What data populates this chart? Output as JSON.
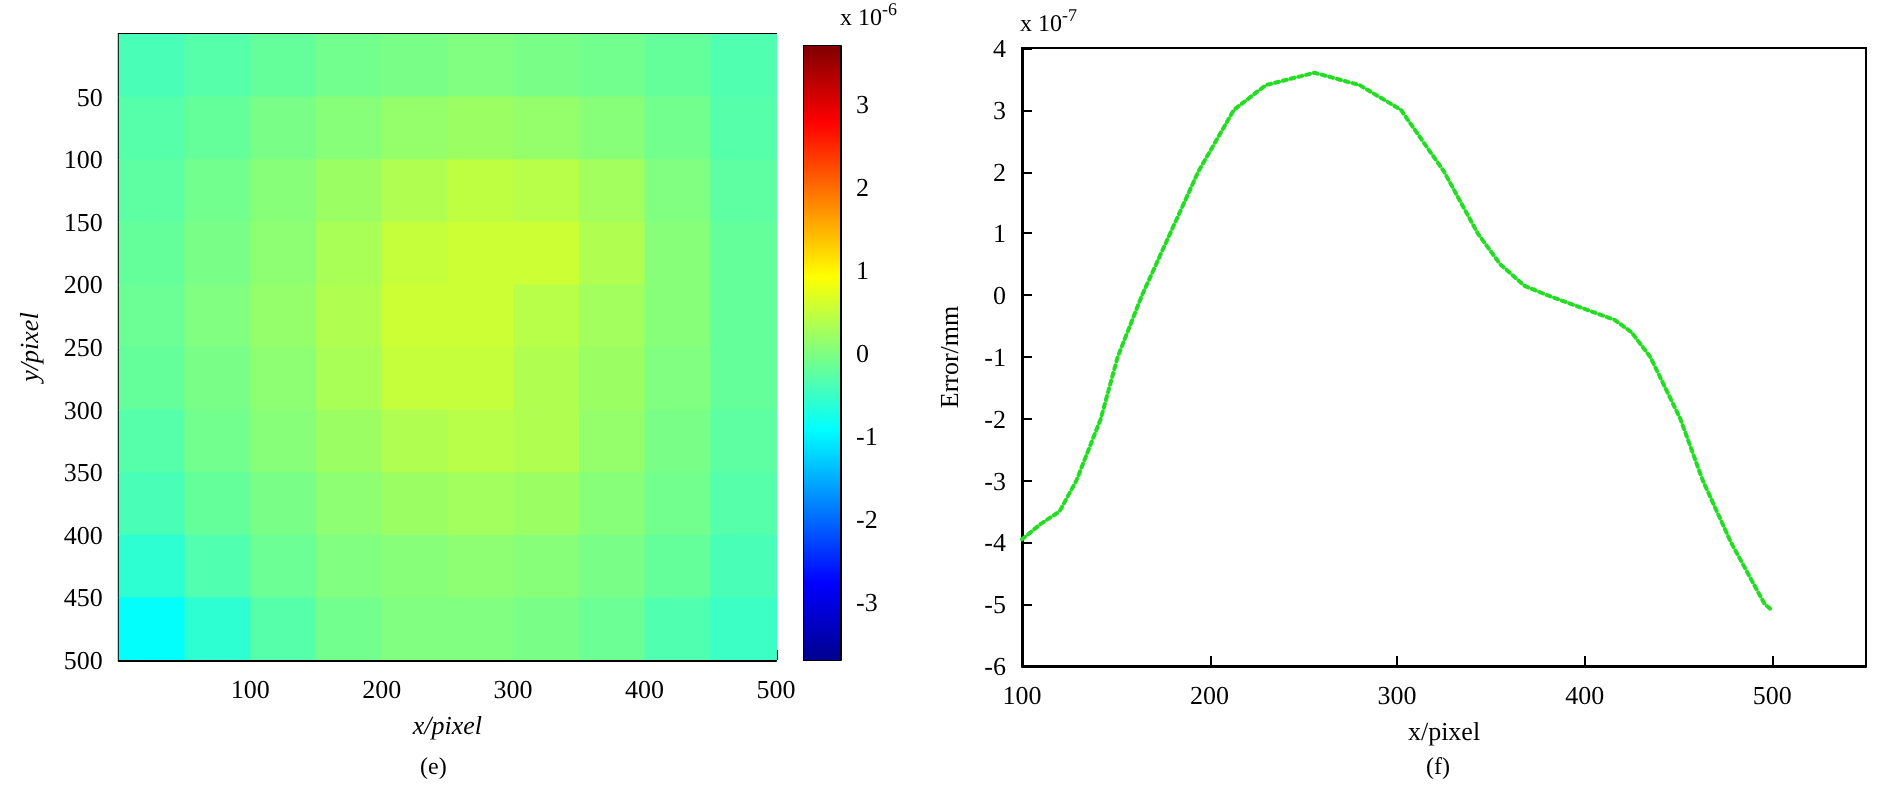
{
  "chart_data": [
    {
      "type": "heatmap",
      "title": "(e)",
      "xlabel": "x/pixel",
      "ylabel": "y/pixel",
      "clabel": "x 10$^{-6}$",
      "x": [
        25,
        75,
        125,
        175,
        225,
        275,
        325,
        375,
        425,
        475
      ],
      "y": [
        25,
        75,
        125,
        175,
        225,
        275,
        325,
        375,
        425,
        475
      ],
      "xlim": [
        0,
        500
      ],
      "xticks": [
        100,
        200,
        300,
        400,
        500
      ],
      "ylim": [
        500,
        0
      ],
      "yticks": [
        50,
        100,
        150,
        200,
        250,
        300,
        350,
        400,
        450,
        500
      ],
      "clim": [
        -3.7,
        3.7
      ],
      "cticks": [
        -3,
        -2,
        -1,
        0,
        1,
        2,
        3
      ],
      "cells": [
        [
          -0.4,
          -0.3,
          -0.2,
          -0.1,
          -0.05,
          0,
          -0.05,
          -0.1,
          -0.2,
          -0.35
        ],
        [
          -0.3,
          -0.2,
          -0.05,
          0.05,
          0.15,
          0.2,
          0.15,
          0.05,
          -0.1,
          -0.3
        ],
        [
          -0.25,
          -0.1,
          0.05,
          0.2,
          0.35,
          0.45,
          0.4,
          0.25,
          0,
          -0.25
        ],
        [
          -0.2,
          -0.05,
          0.1,
          0.3,
          0.5,
          0.55,
          0.55,
          0.35,
          0.05,
          -0.2
        ],
        [
          -0.15,
          0,
          0.15,
          0.35,
          0.55,
          0.55,
          0.4,
          0.25,
          0.05,
          -0.2
        ],
        [
          -0.2,
          -0.05,
          0.1,
          0.3,
          0.5,
          0.5,
          0.35,
          0.2,
          0,
          -0.2
        ],
        [
          -0.3,
          -0.1,
          0.05,
          0.2,
          0.35,
          0.4,
          0.35,
          0.15,
          -0.05,
          -0.25
        ],
        [
          -0.4,
          -0.2,
          -0.05,
          0.1,
          0.2,
          0.25,
          0.2,
          0.05,
          -0.1,
          -0.3
        ],
        [
          -0.6,
          -0.35,
          -0.15,
          0,
          0.05,
          0.1,
          0.05,
          -0.05,
          -0.2,
          -0.4
        ],
        [
          -0.9,
          -0.6,
          -0.3,
          -0.1,
          0,
          0,
          -0.05,
          -0.15,
          -0.35,
          -0.5
        ]
      ]
    },
    {
      "type": "line",
      "title": "(f)",
      "xlabel": "x/pixel",
      "ylabel": "Error/mm",
      "annotations": [
        "x 10$^{-7}$"
      ],
      "xlim": [
        100,
        550
      ],
      "xticks": [
        100,
        200,
        300,
        400,
        500
      ],
      "ylim": [
        -6,
        4
      ],
      "yticks": [
        -6,
        -5,
        -4,
        -3,
        -2,
        -1,
        0,
        1,
        2,
        3,
        4
      ],
      "line_style": "dotted",
      "marker": "none",
      "x": [
        100,
        110,
        120,
        129,
        142,
        151,
        164,
        179,
        194,
        213,
        230,
        256,
        280,
        302,
        325,
        343,
        355,
        368,
        380,
        398,
        416,
        425,
        435,
        451,
        463,
        478,
        496,
        500
      ],
      "series": [
        {
          "color": "#22dd22",
          "values": [
            -3.95,
            -3.7,
            -3.5,
            -3,
            -2,
            -1,
            0,
            1,
            2,
            3,
            3.4,
            3.6,
            3.4,
            3,
            2,
            1,
            0.5,
            0.15,
            0,
            -0.2,
            -0.4,
            -0.6,
            -1,
            -2,
            -3,
            -4,
            -5,
            -5.1
          ]
        }
      ]
    }
  ]
}
